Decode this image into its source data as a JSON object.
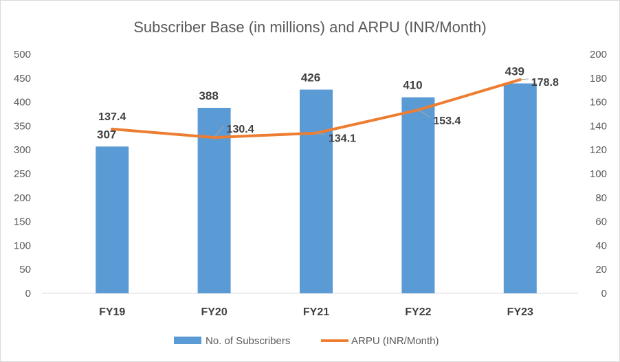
{
  "chart_data": {
    "type": "bar+line",
    "title": "Subscriber Base (in millions) and ARPU (INR/Month)",
    "categories": [
      "FY19",
      "FY20",
      "FY21",
      "FY22",
      "FY23"
    ],
    "series": [
      {
        "name": "No. of Subscribers",
        "type": "bar",
        "axis": "left",
        "values": [
          307,
          388,
          426,
          410,
          439
        ],
        "color": "#5b9bd5"
      },
      {
        "name": "ARPU (INR/Month)",
        "type": "line",
        "axis": "right",
        "values": [
          137.4,
          130.4,
          134.1,
          153.4,
          178.8
        ],
        "color": "#ed7d31"
      }
    ],
    "y_left": {
      "min": 0,
      "max": 500,
      "step": 50,
      "ticks": [
        "0",
        "50",
        "100",
        "150",
        "200",
        "250",
        "300",
        "350",
        "400",
        "450",
        "500"
      ]
    },
    "y_right": {
      "min": 0,
      "max": 200,
      "step": 20,
      "ticks": [
        "0",
        "20",
        "40",
        "60",
        "80",
        "100",
        "120",
        "140",
        "160",
        "180",
        "200"
      ]
    },
    "bar_labels": [
      "307",
      "388",
      "426",
      "410",
      "439"
    ],
    "line_labels": [
      "137.4",
      "130.4",
      "134.1",
      "153.4",
      "178.8"
    ],
    "legend": [
      {
        "label": "No. of Subscribers",
        "kind": "bar",
        "color": "#5b9bd5"
      },
      {
        "label": "ARPU (INR/Month)",
        "kind": "line",
        "color": "#ed7d31"
      }
    ],
    "legend_position": "bottom",
    "grid": false
  }
}
